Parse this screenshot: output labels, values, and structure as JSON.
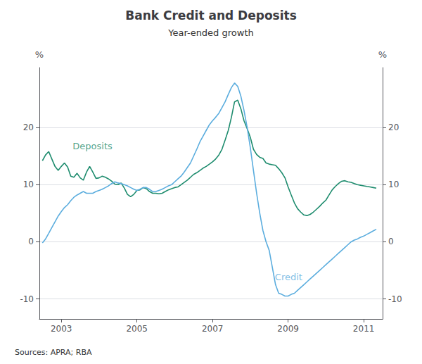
{
  "chart_data": {
    "type": "line",
    "title": "Bank Credit and Deposits",
    "subtitle": "Year-ended growth",
    "source": "Sources: APRA; RBA",
    "ylabel": "%",
    "y2label": "%",
    "xlim": [
      2002.42,
      2011.5
    ],
    "xticks": [
      2003,
      2005,
      2007,
      2009,
      2011
    ],
    "ylim": [
      -13.5,
      30.5
    ],
    "yticks": [
      -10,
      0,
      10,
      20
    ],
    "y2lim": [
      -13.5,
      30.5
    ],
    "y2ticks": [
      -10,
      0,
      10,
      20
    ],
    "grid": true,
    "x": [
      2002.5,
      2002.583,
      2002.667,
      2002.75,
      2002.833,
      2002.917,
      2003.0,
      2003.083,
      2003.167,
      2003.25,
      2003.333,
      2003.417,
      2003.5,
      2003.583,
      2003.667,
      2003.75,
      2003.833,
      2003.917,
      2004.0,
      2004.083,
      2004.167,
      2004.25,
      2004.333,
      2004.417,
      2004.5,
      2004.583,
      2004.667,
      2004.75,
      2004.833,
      2004.917,
      2005.0,
      2005.083,
      2005.167,
      2005.25,
      2005.333,
      2005.417,
      2005.5,
      2005.583,
      2005.667,
      2005.75,
      2005.833,
      2005.917,
      2006.0,
      2006.083,
      2006.167,
      2006.25,
      2006.333,
      2006.417,
      2006.5,
      2006.583,
      2006.667,
      2006.75,
      2006.833,
      2006.917,
      2007.0,
      2007.083,
      2007.167,
      2007.25,
      2007.333,
      2007.417,
      2007.5,
      2007.583,
      2007.667,
      2007.75,
      2007.833,
      2007.917,
      2008.0,
      2008.083,
      2008.167,
      2008.25,
      2008.333,
      2008.417,
      2008.5,
      2008.583,
      2008.667,
      2008.75,
      2008.833,
      2008.917,
      2009.0,
      2009.083,
      2009.167,
      2009.25,
      2009.333,
      2009.417,
      2009.5,
      2009.583,
      2009.667,
      2009.75,
      2009.833,
      2009.917,
      2010.0,
      2010.083,
      2010.167,
      2010.25,
      2010.333,
      2010.417,
      2010.5,
      2010.583,
      2010.667,
      2010.75,
      2010.833,
      2010.917,
      2011.0,
      2011.083,
      2011.167,
      2011.25,
      2011.333
    ],
    "series": [
      {
        "name": "Deposits",
        "color": "#1e8c6e",
        "values": [
          14.2,
          15.2,
          15.8,
          14.5,
          13.2,
          12.5,
          13.2,
          13.8,
          13.1,
          11.5,
          11.3,
          12.0,
          11.2,
          10.8,
          12.2,
          13.2,
          12.2,
          11.1,
          11.2,
          11.5,
          11.3,
          11.0,
          10.6,
          10.1,
          10.0,
          10.3,
          9.4,
          8.3,
          7.9,
          8.3,
          9.0,
          9.1,
          9.5,
          9.3,
          8.8,
          8.5,
          8.5,
          8.4,
          8.5,
          8.8,
          9.1,
          9.3,
          9.5,
          9.6,
          10.0,
          10.4,
          10.8,
          11.3,
          11.8,
          12.1,
          12.5,
          12.9,
          13.2,
          13.6,
          14.0,
          14.5,
          15.2,
          16.2,
          17.8,
          19.5,
          21.8,
          24.5,
          24.8,
          23.3,
          21.2,
          19.8,
          18.3,
          16.2,
          15.3,
          14.8,
          14.6,
          13.8,
          13.6,
          13.5,
          13.4,
          12.8,
          12.1,
          11.2,
          9.6,
          8.2,
          6.8,
          5.8,
          5.2,
          4.7,
          4.6,
          4.8,
          5.2,
          5.7,
          6.2,
          6.8,
          7.3,
          8.2,
          9.1,
          9.7,
          10.2,
          10.6,
          10.7,
          10.5,
          10.4,
          10.2,
          10.0,
          9.9,
          9.8,
          9.7,
          9.6,
          9.5,
          9.4
        ]
      },
      {
        "name": "Credit",
        "color": "#5badde",
        "values": [
          -0.2,
          0.5,
          1.5,
          2.5,
          3.5,
          4.5,
          5.3,
          6.0,
          6.5,
          7.2,
          7.8,
          8.2,
          8.5,
          8.8,
          8.5,
          8.5,
          8.5,
          8.8,
          9.0,
          9.2,
          9.5,
          9.8,
          10.2,
          10.5,
          10.3,
          10.2,
          10.0,
          9.8,
          9.5,
          9.2,
          9.0,
          9.2,
          9.5,
          9.5,
          9.2,
          8.8,
          8.8,
          9.0,
          9.2,
          9.5,
          9.8,
          10.0,
          10.5,
          11.0,
          11.5,
          12.2,
          13.0,
          13.8,
          15.0,
          16.2,
          17.5,
          18.5,
          19.5,
          20.5,
          21.2,
          21.8,
          22.5,
          23.5,
          24.5,
          25.8,
          27.0,
          27.8,
          27.2,
          25.5,
          23.0,
          20.0,
          16.5,
          12.5,
          8.5,
          5.0,
          2.0,
          0.0,
          -1.5,
          -4.5,
          -7.5,
          -9.0,
          -9.2,
          -9.5,
          -9.5,
          -9.2,
          -9.0,
          -8.5,
          -8.0,
          -7.5,
          -7.0,
          -6.5,
          -6.0,
          -5.5,
          -5.0,
          -4.5,
          -4.0,
          -3.5,
          -3.0,
          -2.5,
          -2.0,
          -1.5,
          -1.0,
          -0.5,
          0.0,
          0.3,
          0.5,
          0.8,
          1.0,
          1.3,
          1.6,
          1.9,
          2.2
        ]
      }
    ],
    "annotations": [
      {
        "text": "Deposits",
        "x": 2003.3,
        "y": 16.8,
        "color": "#1e8c6e"
      },
      {
        "text": "Credit",
        "x": 2008.65,
        "y": -6.2,
        "color": "#5badde"
      }
    ]
  }
}
